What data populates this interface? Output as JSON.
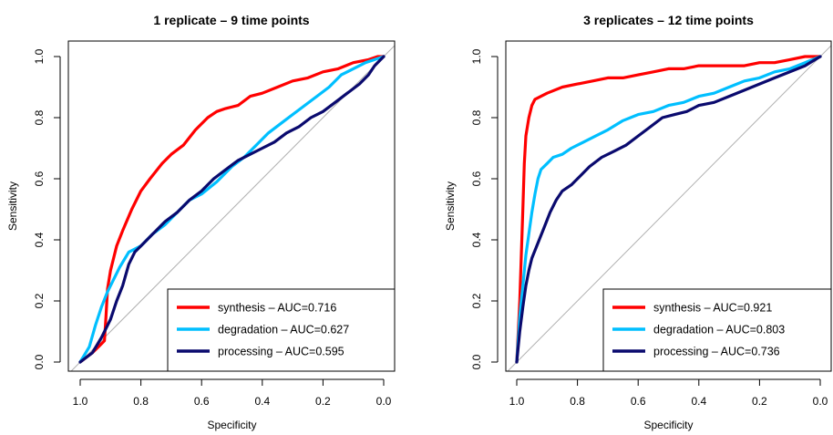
{
  "chart_data": [
    {
      "type": "line",
      "title": "1 replicate – 9 time points",
      "xlabel": "Specificity",
      "ylabel": "Sensitivity",
      "xlim": [
        1.0,
        0.0
      ],
      "ylim": [
        0.0,
        1.0
      ],
      "x_ticks": [
        "1.0",
        "0.8",
        "0.6",
        "0.4",
        "0.2",
        "0.0"
      ],
      "y_ticks": [
        "0.0",
        "0.2",
        "0.4",
        "0.6",
        "0.8",
        "1.0"
      ],
      "legend_position": "bottom-right",
      "reference_line": "diagonal",
      "series": [
        {
          "name": "synthesis – AUC=0.716",
          "color": "#ff0000",
          "x": [
            1.0,
            0.96,
            0.94,
            0.92,
            0.915,
            0.91,
            0.9,
            0.88,
            0.86,
            0.83,
            0.8,
            0.77,
            0.73,
            0.7,
            0.66,
            0.62,
            0.58,
            0.55,
            0.52,
            0.48,
            0.44,
            0.4,
            0.35,
            0.3,
            0.25,
            0.2,
            0.15,
            0.1,
            0.05,
            0.02,
            0.0
          ],
          "y": [
            0.0,
            0.03,
            0.05,
            0.07,
            0.15,
            0.24,
            0.3,
            0.38,
            0.43,
            0.5,
            0.56,
            0.6,
            0.65,
            0.68,
            0.71,
            0.76,
            0.8,
            0.82,
            0.83,
            0.84,
            0.87,
            0.88,
            0.9,
            0.92,
            0.93,
            0.95,
            0.96,
            0.98,
            0.99,
            1.0,
            1.0
          ]
        },
        {
          "name": "degradation – AUC=0.627",
          "color": "#00bfff",
          "x": [
            1.0,
            0.97,
            0.95,
            0.93,
            0.91,
            0.89,
            0.87,
            0.84,
            0.8,
            0.76,
            0.72,
            0.68,
            0.64,
            0.6,
            0.55,
            0.5,
            0.46,
            0.42,
            0.38,
            0.34,
            0.3,
            0.26,
            0.22,
            0.18,
            0.14,
            0.1,
            0.06,
            0.03,
            0.0
          ],
          "y": [
            0.0,
            0.05,
            0.12,
            0.18,
            0.23,
            0.27,
            0.31,
            0.36,
            0.38,
            0.42,
            0.45,
            0.49,
            0.53,
            0.55,
            0.59,
            0.64,
            0.67,
            0.71,
            0.75,
            0.78,
            0.81,
            0.84,
            0.87,
            0.9,
            0.94,
            0.96,
            0.98,
            0.99,
            1.0
          ]
        },
        {
          "name": "processing – AUC=0.595",
          "color": "#0a0a6e",
          "x": [
            1.0,
            0.96,
            0.93,
            0.9,
            0.88,
            0.86,
            0.84,
            0.82,
            0.8,
            0.76,
            0.72,
            0.68,
            0.64,
            0.6,
            0.56,
            0.52,
            0.48,
            0.44,
            0.4,
            0.36,
            0.32,
            0.28,
            0.24,
            0.2,
            0.16,
            0.12,
            0.08,
            0.05,
            0.03,
            0.0
          ],
          "y": [
            0.0,
            0.03,
            0.08,
            0.14,
            0.2,
            0.25,
            0.32,
            0.36,
            0.38,
            0.42,
            0.46,
            0.49,
            0.53,
            0.56,
            0.6,
            0.63,
            0.66,
            0.68,
            0.7,
            0.72,
            0.75,
            0.77,
            0.8,
            0.82,
            0.85,
            0.88,
            0.91,
            0.94,
            0.97,
            1.0
          ]
        }
      ]
    },
    {
      "type": "line",
      "title": "3 replicates – 12 time points",
      "xlabel": "Specificity",
      "ylabel": "Sensitivity",
      "xlim": [
        1.0,
        0.0
      ],
      "ylim": [
        0.0,
        1.0
      ],
      "x_ticks": [
        "1.0",
        "0.8",
        "0.6",
        "0.4",
        "0.2",
        "0.0"
      ],
      "y_ticks": [
        "0.0",
        "0.2",
        "0.4",
        "0.6",
        "0.8",
        "1.0"
      ],
      "legend_position": "bottom-right",
      "reference_line": "diagonal",
      "series": [
        {
          "name": "synthesis – AUC=0.921",
          "color": "#ff0000",
          "x": [
            1.0,
            0.99,
            0.985,
            0.98,
            0.975,
            0.97,
            0.96,
            0.95,
            0.94,
            0.92,
            0.9,
            0.85,
            0.8,
            0.75,
            0.7,
            0.65,
            0.6,
            0.55,
            0.5,
            0.45,
            0.4,
            0.35,
            0.3,
            0.25,
            0.2,
            0.15,
            0.1,
            0.05,
            0.0
          ],
          "y": [
            0.0,
            0.2,
            0.35,
            0.5,
            0.65,
            0.74,
            0.8,
            0.84,
            0.86,
            0.87,
            0.88,
            0.9,
            0.91,
            0.92,
            0.93,
            0.93,
            0.94,
            0.95,
            0.96,
            0.96,
            0.97,
            0.97,
            0.97,
            0.97,
            0.98,
            0.98,
            0.99,
            1.0,
            1.0
          ]
        },
        {
          "name": "degradation – AUC=0.803",
          "color": "#00bfff",
          "x": [
            1.0,
            0.99,
            0.98,
            0.97,
            0.96,
            0.95,
            0.94,
            0.93,
            0.92,
            0.9,
            0.88,
            0.85,
            0.82,
            0.78,
            0.74,
            0.7,
            0.65,
            0.6,
            0.55,
            0.5,
            0.45,
            0.4,
            0.35,
            0.3,
            0.25,
            0.2,
            0.15,
            0.1,
            0.05,
            0.0
          ],
          "y": [
            0.0,
            0.15,
            0.25,
            0.35,
            0.42,
            0.49,
            0.55,
            0.6,
            0.63,
            0.65,
            0.67,
            0.68,
            0.7,
            0.72,
            0.74,
            0.76,
            0.79,
            0.81,
            0.82,
            0.84,
            0.85,
            0.87,
            0.88,
            0.9,
            0.92,
            0.93,
            0.95,
            0.96,
            0.98,
            1.0
          ]
        },
        {
          "name": "processing – AUC=0.736",
          "color": "#0a0a6e",
          "x": [
            1.0,
            0.99,
            0.98,
            0.97,
            0.96,
            0.95,
            0.93,
            0.91,
            0.89,
            0.87,
            0.85,
            0.82,
            0.79,
            0.76,
            0.72,
            0.68,
            0.64,
            0.6,
            0.56,
            0.52,
            0.48,
            0.44,
            0.4,
            0.35,
            0.3,
            0.25,
            0.2,
            0.15,
            0.1,
            0.05,
            0.0
          ],
          "y": [
            0.0,
            0.1,
            0.18,
            0.25,
            0.3,
            0.34,
            0.39,
            0.44,
            0.49,
            0.53,
            0.56,
            0.58,
            0.61,
            0.64,
            0.67,
            0.69,
            0.71,
            0.74,
            0.77,
            0.8,
            0.81,
            0.82,
            0.84,
            0.85,
            0.87,
            0.89,
            0.91,
            0.93,
            0.95,
            0.97,
            1.0
          ]
        }
      ]
    }
  ]
}
